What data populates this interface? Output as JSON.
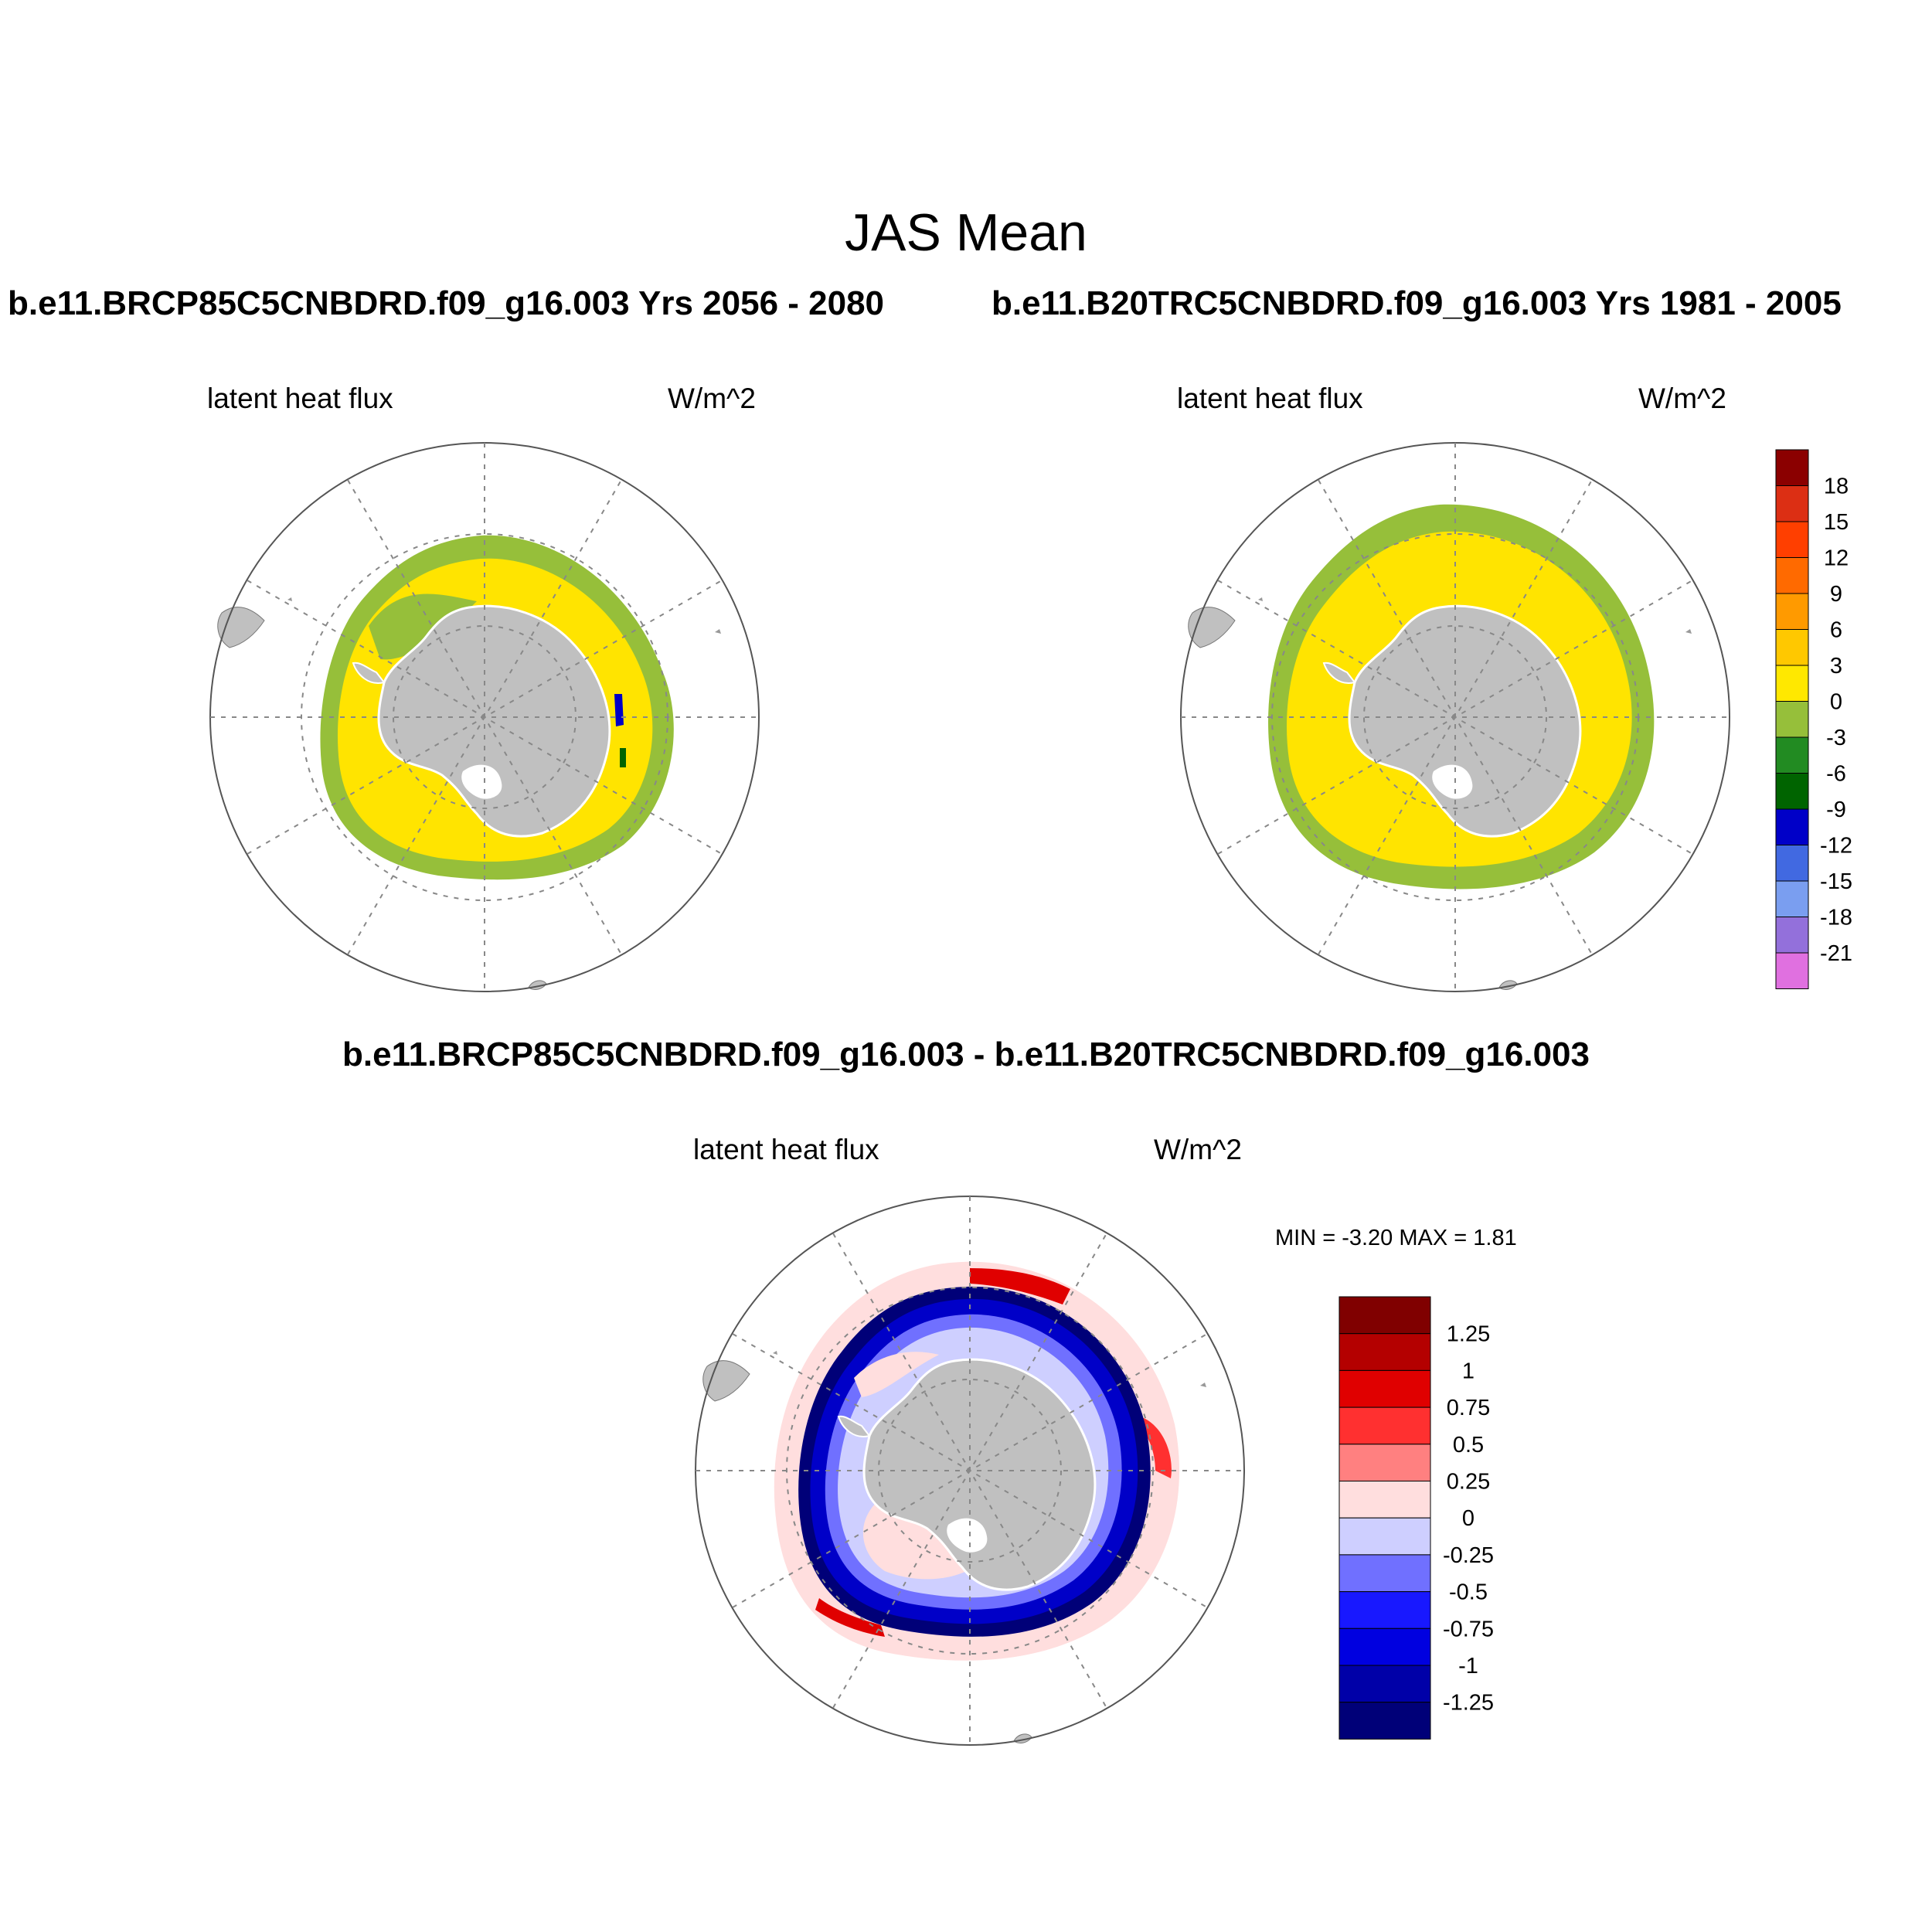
{
  "main_title": "JAS Mean",
  "panels": [
    {
      "run_title": "b.e11.BRCP85C5CNBDRD.f09_g16.003  Yrs 2056 - 2080",
      "variable": "latent heat flux",
      "units": "W/m^2"
    },
    {
      "run_title": "b.e11.B20TRC5CNBDRD.f09_g16.003  Yrs 1981 - 2005",
      "variable": "latent heat flux",
      "units": "W/m^2"
    },
    {
      "run_title": "b.e11.BRCP85C5CNBDRD.f09_g16.003 - b.e11.B20TRC5CNBDRD.f09_g16.003",
      "variable": "latent heat flux",
      "units": "W/m^2",
      "min_max": "MIN =  -3.20 MAX =   1.81"
    }
  ],
  "colorbar_abs": {
    "labels": [
      "18",
      "15",
      "12",
      "9",
      "6",
      "3",
      "0",
      "-3",
      "-6",
      "-9",
      "-12",
      "-15",
      "-18",
      "-21"
    ],
    "colors": [
      "#8b0000",
      "#dc2f14",
      "#ff3f00",
      "#ff6a00",
      "#ff9a00",
      "#ffc800",
      "#ffe800",
      "#96bf3a",
      "#228b22",
      "#006400",
      "#0000c8",
      "#4169e1",
      "#7a9ef0",
      "#9370db",
      "#e070e0"
    ]
  },
  "colorbar_diff": {
    "labels": [
      "1.25",
      "1",
      "0.75",
      "0.5",
      "0.25",
      "0",
      "-0.25",
      "-0.5",
      "-0.75",
      "-1",
      "-1.25"
    ],
    "colors": [
      "#800000",
      "#b40000",
      "#e00000",
      "#ff3030",
      "#ff8080",
      "#ffdede",
      "#cecfff",
      "#7070ff",
      "#1818ff",
      "#0000e0",
      "#0000a8",
      "#000078"
    ]
  },
  "map_colors": {
    "land": "#c0c0c0",
    "field_yellow": "#ffe400",
    "field_green": "#96bf3a"
  }
}
